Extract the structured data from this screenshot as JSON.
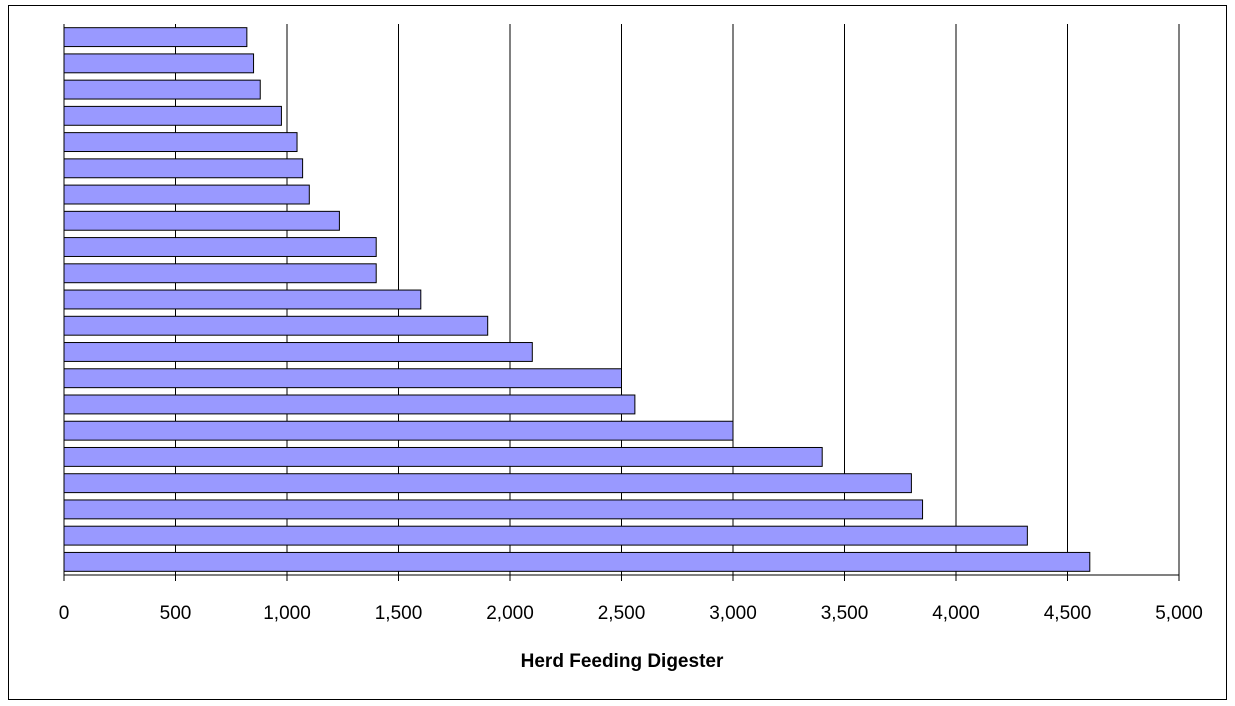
{
  "chart_data": {
    "type": "barh",
    "xlabel": "Herd Feeding Digester",
    "categories": [
      null,
      null,
      null,
      null,
      null,
      null,
      null,
      null,
      null,
      null,
      null,
      null,
      null,
      null,
      null,
      null,
      null,
      null,
      null,
      null,
      null
    ],
    "values": [
      820,
      850,
      880,
      975,
      1045,
      1070,
      1100,
      1235,
      1400,
      1400,
      1600,
      1900,
      2100,
      2500,
      2560,
      3000,
      3400,
      3800,
      3850,
      4320,
      4600
    ],
    "color": "#9999ff",
    "xlim": [
      0,
      5000
    ],
    "xticks": [
      0,
      {
        "value": 500,
        "label": "500"
      },
      {
        "value": 1000,
        "label": "1,000"
      },
      {
        "value": 1500,
        "label": "1,500"
      },
      {
        "value": 2000,
        "label": "2,000"
      },
      {
        "value": 2500,
        "label": "2,500"
      },
      {
        "value": 3000,
        "label": "3,000"
      },
      {
        "value": 3500,
        "label": "3,500"
      },
      {
        "value": 4000,
        "label": "4,000"
      },
      {
        "value": 4500,
        "label": "4,500"
      },
      {
        "value": 5000,
        "label": "5,000"
      }
    ],
    "grid": true
  }
}
